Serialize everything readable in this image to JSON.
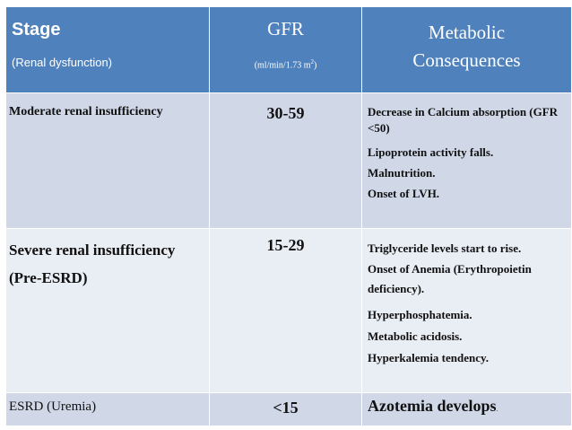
{
  "header": {
    "stage_title": "Stage",
    "stage_sub": "(Renal dysfunction)",
    "gfr_title": "GFR",
    "gfr_sub_prefix": "(ml/min/1.73 m",
    "gfr_sub_sup": "2",
    "gfr_sub_suffix": ")",
    "metabolic_line1": "Metabolic",
    "metabolic_line2": "Consequences"
  },
  "rows": [
    {
      "stage": "Moderate renal insufficiency",
      "gfr": "30-59",
      "consequences": [
        "Decrease in Calcium absorption (GFR <50)",
        "Lipoprotein activity falls.",
        "Malnutrition.",
        "Onset of LVH."
      ]
    },
    {
      "stage": "Severe renal insufficiency (Pre-ESRD)",
      "gfr": "15-29",
      "consequences": [
        "Triglyceride levels start to rise.",
        "Onset of Anemia (Erythropoietin deficiency).",
        "Hyperphosphatemia.",
        "Metabolic acidosis.",
        "Hyperkalemia tendency."
      ]
    },
    {
      "stage": "ESRD (Uremia)",
      "gfr": "<15",
      "consequence_main": "Azotemia develops",
      "consequence_period": "."
    }
  ],
  "colors": {
    "header_bg": "#4f81bd",
    "row_dark": "#d0d8e8",
    "row_light": "#e9edf4"
  }
}
